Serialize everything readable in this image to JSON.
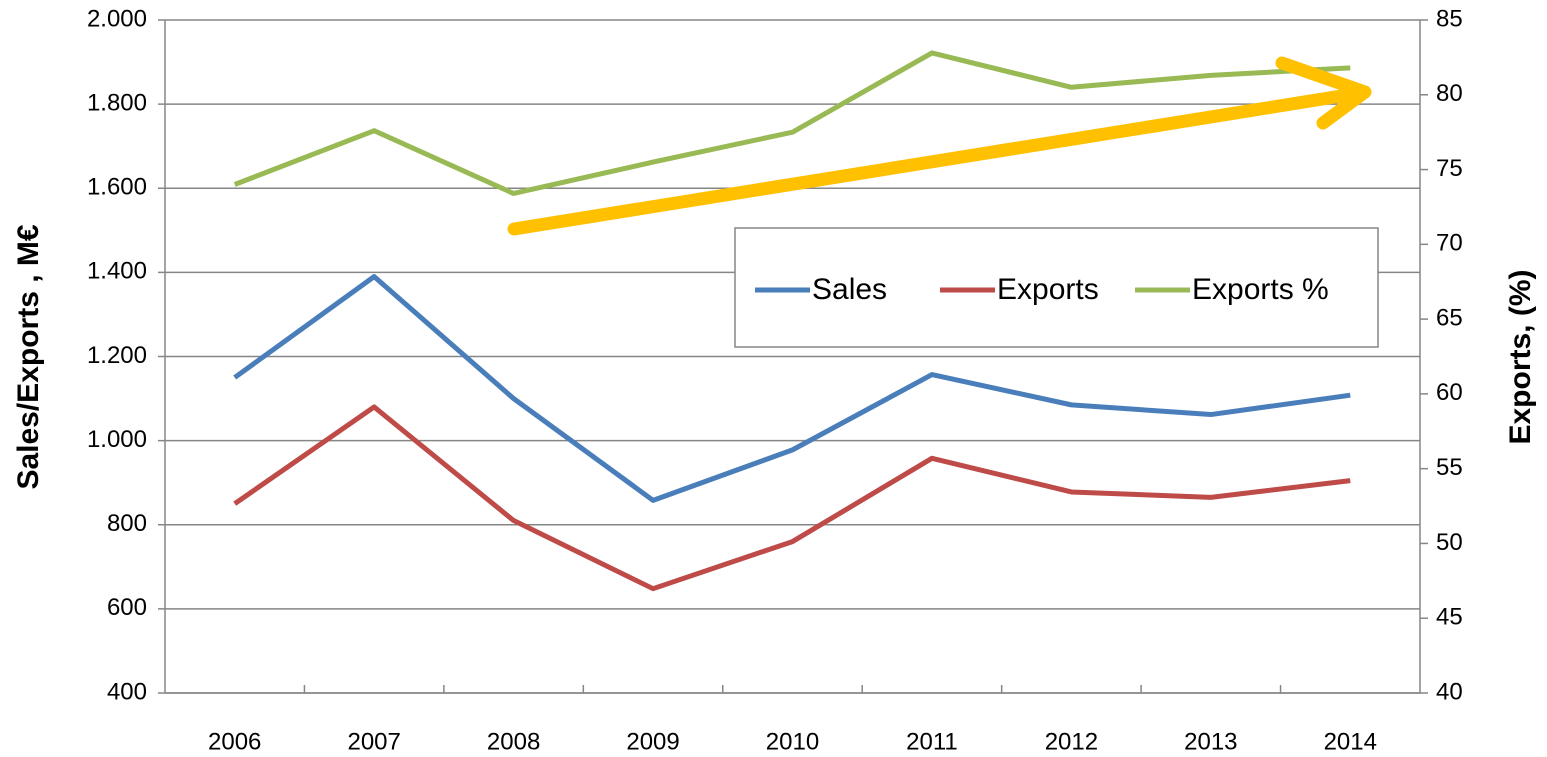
{
  "chart_data": {
    "type": "line",
    "categories": [
      "2006",
      "2007",
      "2008",
      "2009",
      "2010",
      "2011",
      "2012",
      "2013",
      "2014"
    ],
    "series": [
      {
        "name": "Sales",
        "color": "#4a7ebb",
        "values": [
          1150,
          1390,
          1100,
          858,
          978,
          1157,
          1085,
          1062,
          1108
        ]
      },
      {
        "name": "Exports",
        "color": "#be4b48",
        "values": [
          850,
          1080,
          810,
          648,
          760,
          958,
          878,
          865,
          905
        ]
      },
      {
        "name": "Exports %",
        "color": "#98b954",
        "axis": "y2",
        "values": [
          74.0,
          77.6,
          73.4,
          75.5,
          77.5,
          82.8,
          80.5,
          81.3,
          81.8
        ]
      }
    ],
    "y_label": "Sales/Exports , M€",
    "y2_label": "Exports, (%)",
    "ylim": [
      400,
      2000
    ],
    "yticks": [
      400,
      600,
      800,
      {
        "value": 1000,
        "label": "1.000"
      },
      {
        "value": 1200,
        "label": "1.200"
      },
      {
        "value": 1400,
        "label": "1.400"
      },
      {
        "value": 1600,
        "label": "1.600"
      },
      {
        "value": 1800,
        "label": "1.800"
      },
      {
        "value": 2000,
        "label": "2.000"
      }
    ],
    "y2lim": [
      40,
      85
    ],
    "y2ticks": [
      40,
      45,
      50,
      55,
      60,
      65,
      70,
      75,
      80,
      85
    ],
    "grid": true
  }
}
